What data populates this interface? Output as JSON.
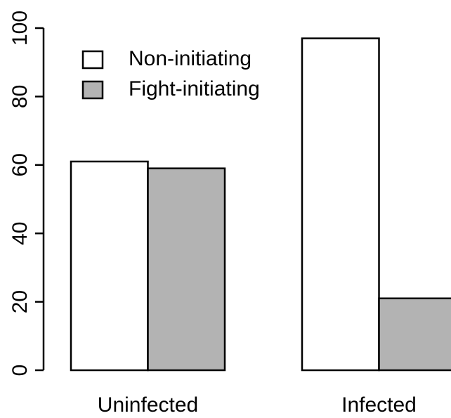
{
  "chart_data": {
    "type": "bar",
    "categories": [
      "Uninfected",
      "Infected"
    ],
    "series": [
      {
        "name": "Non-initiating",
        "color": "#ffffff",
        "values": [
          61,
          97
        ]
      },
      {
        "name": "Fight-initiating",
        "color": "#b3b3b3",
        "values": [
          59,
          21
        ]
      }
    ],
    "ylim": [
      0,
      100
    ],
    "yticks": [
      0,
      20,
      40,
      60,
      80,
      100
    ],
    "legend": "top-left"
  }
}
